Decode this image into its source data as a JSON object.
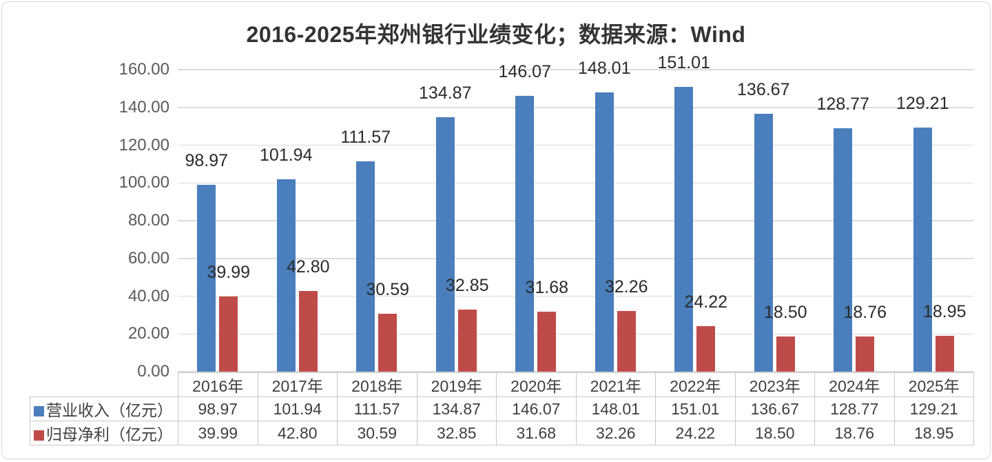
{
  "title": "2016-2025年郑州银行业绩变化；数据来源：Wind",
  "colors": {
    "revenue_blue": "#4a7ebc",
    "profit_red": "#bf4b48",
    "gridline": "#dcdcdc",
    "axis_text": "#595959",
    "value_label_text": "#2b2b2b",
    "table_border": "#c8c8c8",
    "table_text": "#3f3f3f",
    "title_text": "#333333"
  },
  "chart_data": {
    "type": "bar",
    "title": "2016-2025年郑州银行业绩变化；数据来源：Wind",
    "categories": [
      "2016年",
      "2017年",
      "2018年",
      "2019年",
      "2020年",
      "2021年",
      "2022年",
      "2023年",
      "2024年",
      "2025年"
    ],
    "series": [
      {
        "name": "营业收入（亿元）",
        "color": "#4a7ebc",
        "values": [
          98.97,
          101.94,
          111.57,
          134.87,
          146.07,
          148.01,
          151.01,
          136.67,
          128.77,
          129.21
        ],
        "value_labels": [
          "98.97",
          "101.94",
          "111.57",
          "134.87",
          "146.07",
          "148.01",
          "151.01",
          "136.67",
          "128.77",
          "129.21"
        ]
      },
      {
        "name": "归母净利（亿元）",
        "color": "#bf4b48",
        "values": [
          39.99,
          42.8,
          30.59,
          32.85,
          31.68,
          32.26,
          24.22,
          18.5,
          18.76,
          18.95
        ],
        "value_labels": [
          "39.99",
          "42.80",
          "30.59",
          "32.85",
          "31.68",
          "32.26",
          "24.22",
          "18.50",
          "18.76",
          "18.95"
        ]
      }
    ],
    "xlabel": "",
    "ylabel": "",
    "ylim": [
      0,
      160
    ],
    "ytick_step": 20,
    "ytick_labels": [
      "160.00",
      "140.00",
      "120.00",
      "100.00",
      "80.00",
      "60.00",
      "40.00",
      "20.00",
      "0.00"
    ],
    "grid": true,
    "value_labels_shown": true,
    "legend_position": "table-rows-bottom-left"
  },
  "table": {
    "header": [
      "2016年",
      "2017年",
      "2018年",
      "2019年",
      "2020年",
      "2021年",
      "2022年",
      "2023年",
      "2024年",
      "2025年"
    ],
    "row_labels": [
      "营业收入（亿元）",
      "归母净利（亿元）"
    ],
    "rows": [
      [
        "98.97",
        "101.94",
        "111.57",
        "134.87",
        "146.07",
        "148.01",
        "151.01",
        "136.67",
        "128.77",
        "129.21"
      ],
      [
        "39.99",
        "42.80",
        "30.59",
        "32.85",
        "31.68",
        "32.26",
        "24.22",
        "18.50",
        "18.76",
        "18.95"
      ]
    ]
  }
}
